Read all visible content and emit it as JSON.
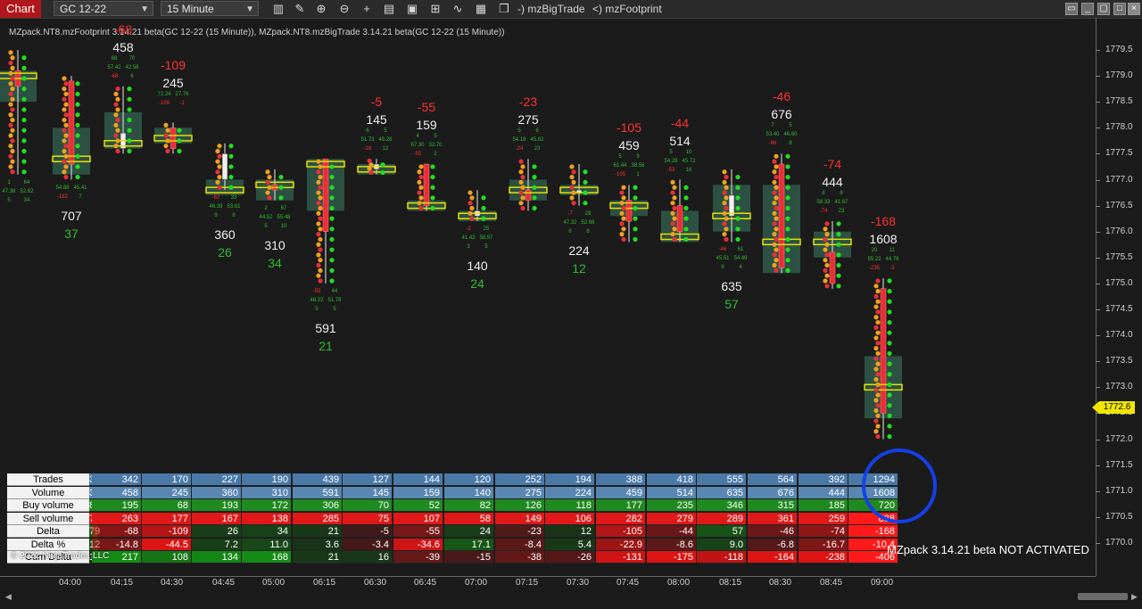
{
  "toolbar": {
    "chart_tab": "Chart",
    "instrument": "GC 12-22",
    "interval": "15 Minute",
    "indicator_tab_1": "-)  mzBigTrade",
    "indicator_tab_2": "<)  mzFootprint",
    "icons": [
      "bars-icon",
      "pencil-icon",
      "zoom-in-icon",
      "zoom-out-icon",
      "crosshair-icon",
      "properties-icon",
      "data-box-icon",
      "strategies-icon",
      "indicators-icon",
      "templates-icon"
    ]
  },
  "indicator_line": "MZpack.NT8.mzFootprint 3.14.21 beta(GC 12-22 (15 Minute)), MZpack.NT8.mzBigTrade 3.14.21 beta(GC 12-22 (15 Minute))",
  "price_axis": {
    "labels": [
      "1779.5",
      "1779.0",
      "1778.5",
      "1778.0",
      "1777.5",
      "1777.0",
      "1776.5",
      "1776.0",
      "1775.5",
      "1775.0",
      "1774.5",
      "1774.0",
      "1773.5",
      "1773.0",
      "1772.5",
      "1772.0",
      "1771.5",
      "1771.0",
      "1770.5",
      "1770.0"
    ],
    "current_price": "1772.6"
  },
  "time_axis": [
    "04:00",
    "04:15",
    "04:30",
    "04:45",
    "05:00",
    "06:15",
    "06:30",
    "06:45",
    "07:00",
    "07:15",
    "07:30",
    "07:45",
    "08:00",
    "08:15",
    "08:30",
    "08:45",
    "09:00"
  ],
  "bars": [
    {
      "time": "04:00",
      "high": 1779.5,
      "low": 1777.1,
      "open": 1779.1,
      "close": 1778.8,
      "box": [
        1778.5,
        1779.1
      ],
      "poc": 1779.0,
      "volume": "",
      "buy": "",
      "delta": "",
      "mini": [
        "1",
        "64",
        "47.38",
        "52.62",
        "5",
        "34"
      ],
      "below": true
    },
    {
      "time": "04:00b",
      "high": 1779.0,
      "low": 1777.0,
      "open": 1778.9,
      "close": 1777.3,
      "box": [
        1777.1,
        1778.0
      ],
      "poc": 1777.4,
      "volume": "707",
      "buy": "37",
      "delta": "88-1",
      "mini": [
        "54.88",
        "45.41",
        "-182",
        "7"
      ],
      "below": true
    },
    {
      "time": "04:15",
      "high": 1778.8,
      "low": 1777.5,
      "open": 1777.6,
      "close": 1777.9,
      "box": [
        1777.6,
        1778.3
      ],
      "poc": 1777.7,
      "volume": "458",
      "buy": "",
      "delta": "-68",
      "mini": [
        "68",
        "70",
        "57.42",
        "42.58",
        "-68",
        "6"
      ],
      "below": false
    },
    {
      "time": "04:30",
      "high": 1778.1,
      "low": 1777.5,
      "open": 1778.0,
      "close": 1777.6,
      "box": [
        1777.7,
        1778.0
      ],
      "poc": 1777.8,
      "volume": "245",
      "buy": "",
      "delta": "-109",
      "mini": [
        "72.24",
        "27.76",
        "-109",
        "-1"
      ],
      "below": false
    },
    {
      "time": "04:45",
      "high": 1777.7,
      "low": 1776.8,
      "open": 1777.0,
      "close": 1777.5,
      "box": [
        1776.7,
        1777.0
      ],
      "poc": 1776.8,
      "volume": "360",
      "buy": "26",
      "delta": "",
      "mini": [
        "-62",
        "33",
        "46.39",
        "53.61",
        "9",
        "8"
      ],
      "below": true
    },
    {
      "time": "05:00",
      "high": 1777.2,
      "low": 1776.6,
      "open": 1776.9,
      "close": 1776.8,
      "box": [
        1776.6,
        1777.0
      ],
      "poc": 1776.9,
      "volume": "310",
      "buy": "34",
      "delta": "",
      "mini": [
        "2",
        "67",
        "44.52",
        "55.48",
        "5",
        "10"
      ],
      "below": true
    },
    {
      "time": "06:15",
      "high": 1777.4,
      "low": 1775.0,
      "open": 1777.4,
      "close": 1776.0,
      "box": [
        1776.4,
        1777.4
      ],
      "poc": 1777.3,
      "volume": "591",
      "buy": "21",
      "delta": "",
      "mini": [
        "-55",
        "44",
        "48.22",
        "51.78",
        "5",
        "5"
      ],
      "below": true
    },
    {
      "time": "06:30",
      "high": 1777.4,
      "low": 1777.1,
      "open": 1777.2,
      "close": 1777.3,
      "box": [
        1777.1,
        1777.3
      ],
      "poc": 1777.2,
      "volume": "145",
      "buy": "",
      "delta": "-5",
      "mini": [
        "6",
        "5",
        "51.73",
        "48.28",
        "-18",
        "12"
      ],
      "below": false
    },
    {
      "time": "06:45",
      "high": 1777.3,
      "low": 1776.4,
      "open": 1777.3,
      "close": 1776.5,
      "box": [
        1776.4,
        1776.6
      ],
      "poc": 1776.5,
      "volume": "159",
      "buy": "",
      "delta": "-55",
      "mini": [
        "4",
        "5",
        "67.30",
        "32.70",
        "-55",
        "2"
      ],
      "below": false
    },
    {
      "time": "07:00",
      "high": 1776.8,
      "low": 1776.2,
      "open": 1776.3,
      "close": 1776.4,
      "box": [
        1776.2,
        1776.4
      ],
      "poc": 1776.3,
      "volume": "140",
      "buy": "24",
      "delta": "",
      "mini": [
        "-2",
        "25",
        "41.43",
        "58.57",
        "3",
        "5"
      ],
      "below": true
    },
    {
      "time": "07:15",
      "high": 1777.4,
      "low": 1776.4,
      "open": 1776.8,
      "close": 1776.6,
      "box": [
        1776.6,
        1777.0
      ],
      "poc": 1776.8,
      "volume": "275",
      "buy": "",
      "delta": "-23",
      "mini": [
        "5",
        "6",
        "54.18",
        "45.82",
        "-24",
        "23"
      ],
      "below": false
    },
    {
      "time": "07:30",
      "high": 1777.3,
      "low": 1776.5,
      "open": 1776.8,
      "close": 1776.8,
      "box": [
        1776.7,
        1776.9
      ],
      "poc": 1776.8,
      "volume": "224",
      "buy": "12",
      "delta": "",
      "mini": [
        "-7",
        "29",
        "47.32",
        "52.68",
        "6",
        "8"
      ],
      "below": true
    },
    {
      "time": "07:45",
      "high": 1776.9,
      "low": 1775.8,
      "open": 1776.6,
      "close": 1776.2,
      "box": [
        1776.3,
        1776.6
      ],
      "poc": 1776.5,
      "volume": "459",
      "buy": "",
      "delta": "-105",
      "mini": [
        "5",
        "9",
        "61.44",
        "38.56",
        "-105",
        "1"
      ],
      "below": false
    },
    {
      "time": "08:00",
      "high": 1777.0,
      "low": 1775.8,
      "open": 1776.5,
      "close": 1776.0,
      "box": [
        1775.8,
        1776.4
      ],
      "poc": 1775.9,
      "volume": "514",
      "buy": "",
      "delta": "-44",
      "mini": [
        "5",
        "10",
        "54.28",
        "45.72",
        "-53",
        "16"
      ],
      "below": false
    },
    {
      "time": "08:15",
      "high": 1777.2,
      "low": 1775.8,
      "open": 1776.3,
      "close": 1776.7,
      "box": [
        1776.0,
        1776.9
      ],
      "poc": 1776.3,
      "volume": "635",
      "buy": "57",
      "delta": "",
      "mini": [
        "-46",
        "61",
        "45.51",
        "54.49",
        "6",
        "4"
      ],
      "below": true
    },
    {
      "time": "08:30",
      "high": 1777.5,
      "low": 1775.2,
      "open": 1777.3,
      "close": 1775.3,
      "box": [
        1775.2,
        1776.9
      ],
      "poc": 1775.8,
      "volume": "676",
      "buy": "",
      "delta": "-46",
      "mini": [
        "7",
        "5",
        "53.40",
        "46.60",
        "-66",
        "8"
      ],
      "below": false
    },
    {
      "time": "08:45",
      "high": 1776.2,
      "low": 1774.9,
      "open": 1775.6,
      "close": 1775.0,
      "box": [
        1775.5,
        1776.0
      ],
      "poc": 1775.8,
      "volume": "444",
      "buy": "",
      "delta": "-74",
      "mini": [
        "8",
        "8",
        "58.33",
        "41.67",
        "-74",
        "23"
      ],
      "below": false
    },
    {
      "time": "09:00",
      "high": 1775.1,
      "low": 1772.0,
      "open": 1774.9,
      "close": 1772.5,
      "box": [
        1772.4,
        1773.6
      ],
      "poc": 1773.0,
      "volume": "1608",
      "buy": "",
      "delta": "-168",
      "mini": [
        "20",
        "11",
        "55.22",
        "44.78",
        "-235",
        "-3"
      ],
      "below": false
    }
  ],
  "stats": {
    "row_labels": [
      "Trades",
      "Volume",
      "Buy volume",
      "Sell volume",
      "Delta",
      "Delta %",
      "Cum Delta"
    ],
    "rows": [
      [
        "30",
        "342",
        "170",
        "227",
        "190",
        "439",
        "127",
        "144",
        "120",
        "252",
        "194",
        "388",
        "418",
        "555",
        "564",
        "392",
        "1294"
      ],
      [
        "31",
        "458",
        "245",
        "360",
        "310",
        "591",
        "145",
        "159",
        "140",
        "275",
        "224",
        "459",
        "514",
        "635",
        "676",
        "444",
        "1608"
      ],
      [
        "81",
        "195",
        "68",
        "193",
        "172",
        "306",
        "70",
        "52",
        "82",
        "126",
        "118",
        "177",
        "235",
        "346",
        "315",
        "185",
        "720"
      ],
      [
        "70",
        "263",
        "177",
        "167",
        "138",
        "285",
        "75",
        "107",
        "58",
        "149",
        "106",
        "282",
        "279",
        "289",
        "361",
        "259",
        "888"
      ],
      [
        "79",
        "-68",
        "-109",
        "26",
        "34",
        "21",
        "-5",
        "-55",
        "24",
        "-23",
        "12",
        "-105",
        "-44",
        "57",
        "-46",
        "-74",
        "-168"
      ],
      [
        "12",
        "-14.8",
        "-44.5",
        "7.2",
        "11.0",
        "3.6",
        "-3.4",
        "-34.6",
        "17.1",
        "-8.4",
        "5.4",
        "-22.9",
        "-8.6",
        "9.0",
        "-6.8",
        "-16.7",
        "-10.4"
      ],
      [
        "15",
        "217",
        "108",
        "134",
        "168",
        "21",
        "16",
        "-39",
        "-15",
        "-38",
        "-26",
        "-131",
        "-175",
        "-118",
        "-164",
        "-238",
        "-406"
      ]
    ]
  },
  "copyright": "© 2022 NinjaTrader, LLC",
  "watermark": "MZpack 3.14.21 beta NOT ACTIVATED",
  "colors": {
    "buy": "#2fbd2f",
    "sell": "#ff3030",
    "highlight_circle": "#1540e6",
    "current_price": "#f2e600"
  }
}
